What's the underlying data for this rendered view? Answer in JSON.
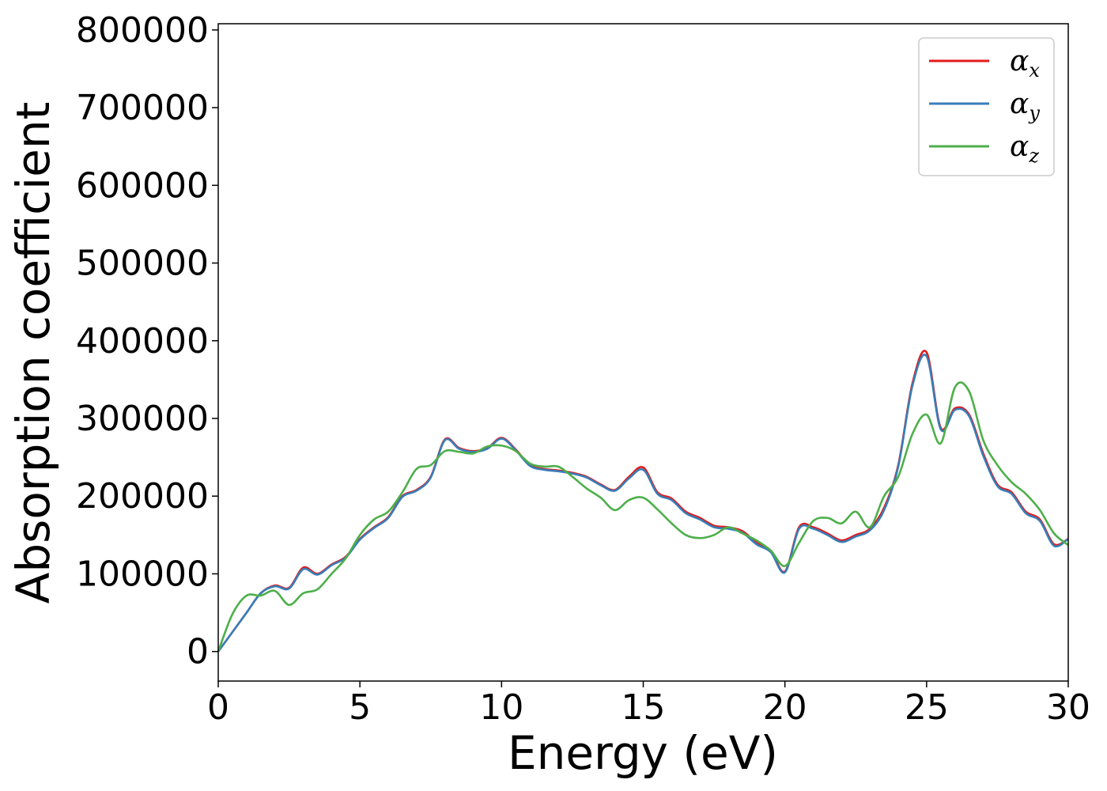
{
  "chart_data": {
    "type": "line",
    "xlabel": "Energy (eV)",
    "ylabel": "Absorption coefficient",
    "xlim": [
      0,
      30
    ],
    "ylim": [
      -38000,
      808000
    ],
    "x_ticks": [
      "0",
      "5",
      "10",
      "15",
      "20",
      "25",
      "30"
    ],
    "y_ticks": [
      "0",
      "100000",
      "200000",
      "300000",
      "400000",
      "500000",
      "600000",
      "700000",
      "800000"
    ],
    "x_tick_values": [
      0,
      5,
      10,
      15,
      20,
      25,
      30
    ],
    "y_tick_values": [
      0,
      100000,
      200000,
      300000,
      400000,
      500000,
      600000,
      700000,
      800000
    ],
    "grid": false,
    "legend_position": "top-right",
    "x": [
      0,
      0.5,
      1,
      1.5,
      2,
      2.5,
      3,
      3.5,
      4,
      4.5,
      5,
      5.5,
      6,
      6.5,
      7,
      7.5,
      8,
      8.5,
      9,
      9.5,
      10,
      10.5,
      11,
      11.5,
      12,
      12.5,
      13,
      13.5,
      14,
      14.5,
      15,
      15.5,
      16,
      16.5,
      17,
      17.5,
      18,
      18.5,
      19,
      19.5,
      20,
      20.5,
      21,
      21.5,
      22,
      22.5,
      23,
      23.5,
      24,
      24.5,
      25,
      25.5,
      26,
      26.5,
      27,
      27.5,
      28,
      28.5,
      29,
      29.5,
      30
    ],
    "series": [
      {
        "name": "α",
        "sub": "x",
        "color": "#e41a1c",
        "values": [
          0,
          25000,
          50000,
          75000,
          85000,
          82000,
          108000,
          100000,
          112000,
          122000,
          145000,
          160000,
          173000,
          200000,
          208000,
          225000,
          273000,
          262000,
          258000,
          262000,
          275000,
          260000,
          240000,
          235000,
          233000,
          230000,
          225000,
          215000,
          208000,
          225000,
          237000,
          205000,
          197000,
          180000,
          172000,
          162000,
          160000,
          155000,
          140000,
          130000,
          103000,
          160000,
          160000,
          152000,
          143000,
          150000,
          158000,
          185000,
          240000,
          345000,
          385000,
          288000,
          313000,
          305000,
          255000,
          215000,
          205000,
          180000,
          170000,
          138000,
          145000
        ]
      },
      {
        "name": "α",
        "sub": "y",
        "color": "#377eb8",
        "values": [
          0,
          25000,
          50000,
          75000,
          84000,
          81000,
          106000,
          99000,
          111000,
          121000,
          144000,
          159000,
          172000,
          199000,
          207000,
          224000,
          272000,
          261000,
          257000,
          261000,
          274000,
          259000,
          239000,
          234000,
          232000,
          229000,
          224000,
          214000,
          207000,
          223000,
          234000,
          203000,
          195000,
          178000,
          170000,
          160000,
          158000,
          153000,
          138000,
          128000,
          102000,
          158000,
          158000,
          150000,
          141000,
          148000,
          156000,
          182000,
          238000,
          342000,
          380000,
          286000,
          311000,
          303000,
          252000,
          213000,
          203000,
          178000,
          168000,
          136000,
          145000
        ]
      },
      {
        "name": "α",
        "sub": "z",
        "color": "#4daf4a",
        "values": [
          0,
          48000,
          72000,
          72000,
          78000,
          60000,
          75000,
          80000,
          100000,
          120000,
          150000,
          170000,
          180000,
          205000,
          235000,
          240000,
          258000,
          257000,
          255000,
          264000,
          265000,
          258000,
          242000,
          238000,
          238000,
          225000,
          210000,
          198000,
          182000,
          195000,
          198000,
          183000,
          165000,
          150000,
          146000,
          150000,
          160000,
          152000,
          143000,
          130000,
          110000,
          140000,
          168000,
          172000,
          165000,
          180000,
          160000,
          200000,
          225000,
          280000,
          305000,
          268000,
          340000,
          335000,
          272000,
          240000,
          218000,
          203000,
          182000,
          152000,
          137000
        ]
      }
    ]
  }
}
